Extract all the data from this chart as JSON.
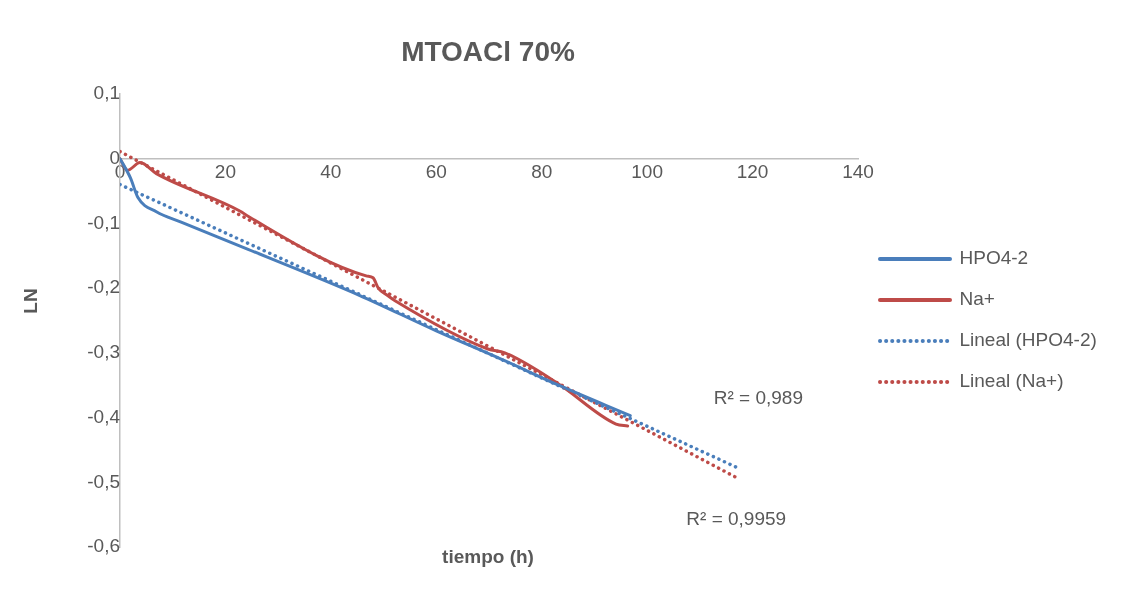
{
  "chart_data": {
    "type": "line",
    "title": "MTOACl 70%",
    "xlabel": "tiempo (h)",
    "ylabel": "LN",
    "xlim": [
      0,
      140
    ],
    "xticks": [
      0,
      20,
      40,
      60,
      80,
      100,
      120,
      140
    ],
    "ylim": [
      -0.6,
      0.1
    ],
    "yticks": [
      {
        "value": 0.1,
        "label": "0,1"
      },
      0,
      {
        "value": -0.1,
        "label": "-0,1"
      },
      {
        "value": -0.2,
        "label": "-0,2"
      },
      {
        "value": -0.3,
        "label": "-0,3"
      },
      {
        "value": -0.4,
        "label": "-0,4"
      },
      {
        "value": -0.5,
        "label": "-0,5"
      },
      {
        "value": -0.6,
        "label": "-0,6"
      }
    ],
    "grid": false,
    "legend": "right",
    "marker": "none",
    "series": [
      {
        "name": "HPO4-2",
        "color": "#4a7ebb",
        "line_style": "solid",
        "x": [
          0,
          2,
          3.4,
          6.9,
          11.6,
          24.3,
          45.4,
          60,
          72.4,
          83.2,
          96.8
        ],
        "values": [
          0,
          -0.03,
          -0.06,
          -0.082,
          -0.098,
          -0.14,
          -0.211,
          -0.266,
          -0.31,
          -0.35,
          -0.397
        ]
      },
      {
        "name": "Na+",
        "color": "#be4b48",
        "line_style": "solid",
        "x": [
          0,
          1.4,
          3.8,
          6.9,
          23,
          24.3,
          46.7,
          48,
          49,
          50.7,
          52.1,
          69.8,
          73,
          83.2,
          94.1,
          96.3
        ],
        "values": [
          0,
          -0.018,
          -0.006,
          -0.023,
          -0.082,
          -0.089,
          -0.181,
          -0.184,
          -0.2,
          -0.211,
          -0.219,
          -0.294,
          -0.3,
          -0.348,
          -0.41,
          -0.413
        ]
      },
      {
        "name": "Lineal (HPO4-2)",
        "color": "#4a7ebb",
        "line_style": "dotted",
        "x": [
          0,
          117
        ],
        "values": [
          -0.04,
          -0.477
        ]
      },
      {
        "name": "Lineal (Na+)",
        "color": "#be4b48",
        "line_style": "dotted",
        "x": [
          0,
          117
        ],
        "values": [
          0.011,
          -0.493
        ]
      }
    ],
    "annotations": [
      "R² = 0,989",
      "R² = 0,9959"
    ]
  }
}
